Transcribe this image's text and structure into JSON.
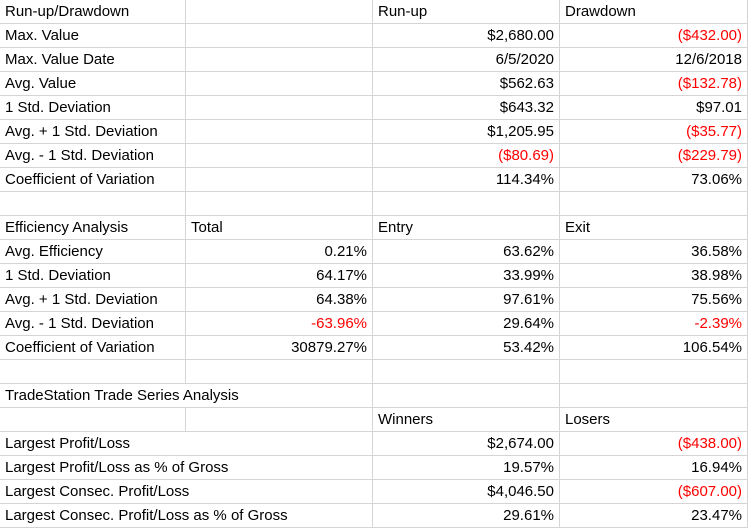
{
  "runup": {
    "header": [
      "Run-up/Drawdown",
      "",
      "Run-up",
      "Drawdown"
    ],
    "rows": [
      {
        "label": "Max. Value",
        "total": "",
        "a": "$2,680.00",
        "b": "($432.00)",
        "a_neg": false,
        "b_neg": true
      },
      {
        "label": "Max. Value Date",
        "total": "",
        "a": "6/5/2020",
        "b": "12/6/2018",
        "a_neg": false,
        "b_neg": false
      },
      {
        "label": "Avg. Value",
        "total": "",
        "a": "$562.63",
        "b": "($132.78)",
        "a_neg": false,
        "b_neg": true
      },
      {
        "label": "1 Std. Deviation",
        "total": "",
        "a": "$643.32",
        "b": "$97.01",
        "a_neg": false,
        "b_neg": false
      },
      {
        "label": "Avg. + 1 Std. Deviation",
        "total": "",
        "a": "$1,205.95",
        "b": "($35.77)",
        "a_neg": false,
        "b_neg": true
      },
      {
        "label": "Avg. - 1 Std. Deviation",
        "total": "",
        "a": "($80.69)",
        "b": "($229.79)",
        "a_neg": true,
        "b_neg": true
      },
      {
        "label": "Coefficient of Variation",
        "total": "",
        "a": "114.34%",
        "b": "73.06%",
        "a_neg": false,
        "b_neg": false
      }
    ]
  },
  "efficiency": {
    "header": [
      "Efficiency Analysis",
      "Total",
      "Entry",
      "Exit"
    ],
    "rows": [
      {
        "label": "Avg. Efficiency",
        "total": "0.21%",
        "a": "63.62%",
        "b": "36.58%",
        "t_neg": false
      },
      {
        "label": "1 Std. Deviation",
        "total": "64.17%",
        "a": "33.99%",
        "b": "38.98%",
        "t_neg": false
      },
      {
        "label": "Avg. + 1 Std. Deviation",
        "total": "64.38%",
        "a": "97.61%",
        "b": "75.56%",
        "t_neg": false
      },
      {
        "label": "Avg. - 1 Std. Deviation",
        "total": "-63.96%",
        "a": "29.64%",
        "b": "-2.39%",
        "t_neg": true,
        "b_neg": true
      },
      {
        "label": "Coefficient of Variation",
        "total": "30879.27%",
        "a": "53.42%",
        "b": "106.54%",
        "t_neg": false
      }
    ]
  },
  "series": {
    "title": "TradeStation Trade Series Analysis",
    "header": [
      "",
      "",
      "Winners",
      "Losers"
    ],
    "rows": [
      {
        "label": "Largest Profit/Loss",
        "total": "",
        "a": "$2,674.00",
        "b": "($438.00)",
        "b_neg": true
      },
      {
        "label": "Largest Profit/Loss as % of Gross",
        "total": "",
        "a": "19.57%",
        "b": "16.94%",
        "b_neg": false
      },
      {
        "label": "Largest Consec. Profit/Loss",
        "total": "",
        "a": "$4,046.50",
        "b": "($607.00)",
        "b_neg": true
      },
      {
        "label": "Largest Consec. Profit/Loss as % of Gross",
        "total": "",
        "a": "29.61%",
        "b": "23.47%",
        "b_neg": false
      }
    ]
  }
}
